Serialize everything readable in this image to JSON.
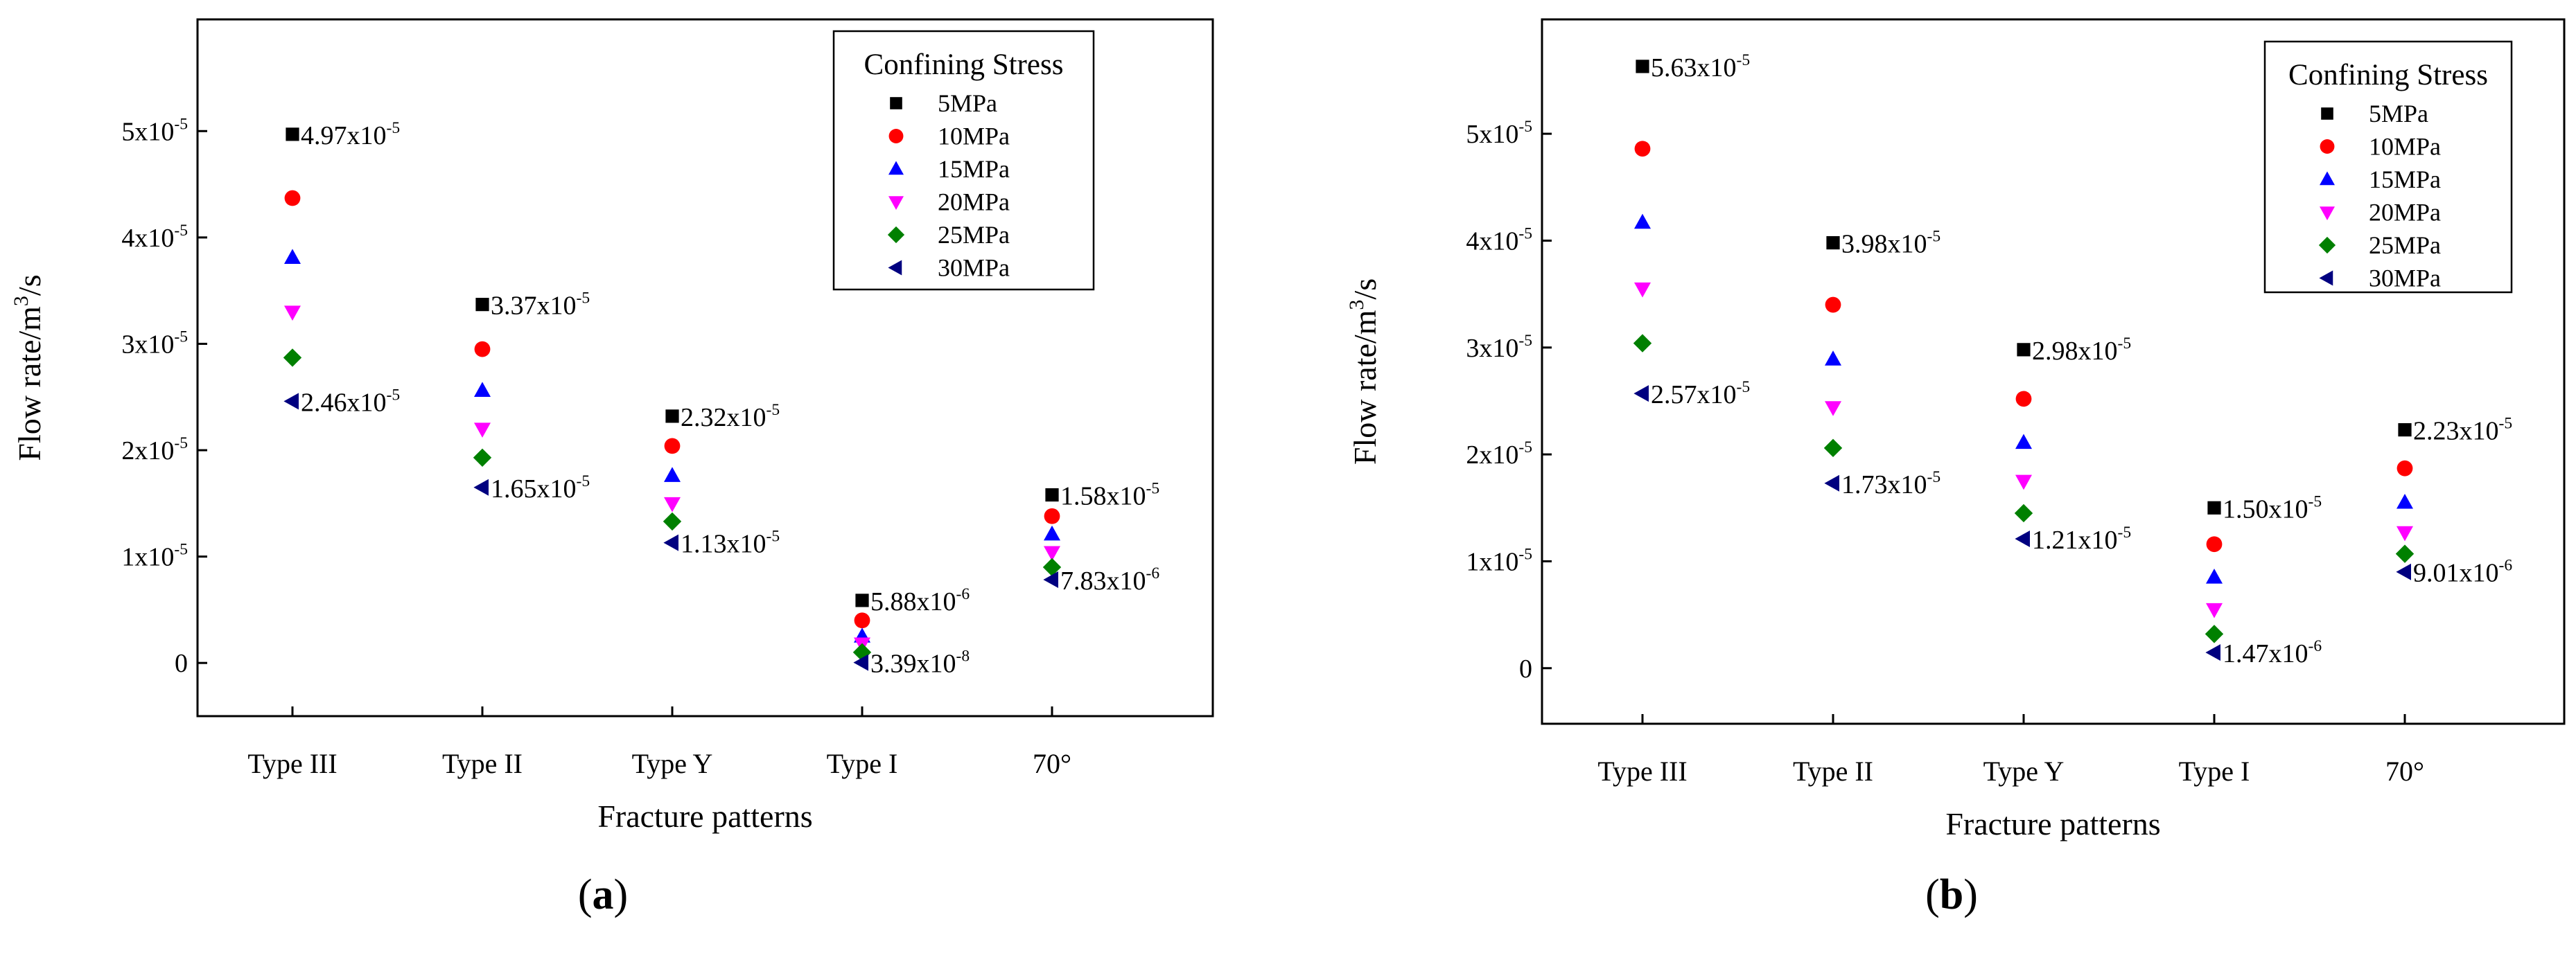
{
  "chart_data": [
    {
      "type": "scatter",
      "panel_label": "a",
      "xlabel": "Fracture patterns",
      "ylabel": "Flow rate/m",
      "ylabel_sup": "3",
      "ylabel_suffix": "/s",
      "categories": [
        "Type III",
        "Type II",
        "Type Y",
        "Type I",
        "70°"
      ],
      "ylim": [
        -5e-06,
        6.05e-05
      ],
      "yticks": [
        {
          "value": 0,
          "base": "0",
          "exp": ""
        },
        {
          "value": 1e-05,
          "base": "1x10",
          "exp": "-5"
        },
        {
          "value": 2e-05,
          "base": "2x10",
          "exp": "-5"
        },
        {
          "value": 3e-05,
          "base": "3x10",
          "exp": "-5"
        },
        {
          "value": 4e-05,
          "base": "4x10",
          "exp": "-5"
        },
        {
          "value": 5e-05,
          "base": "5x10",
          "exp": "-5"
        }
      ],
      "legend": {
        "title": "Confining Stress",
        "position": "top-right"
      },
      "series": [
        {
          "name": "5MPa",
          "marker": "square",
          "color": "#000000",
          "values": [
            4.97e-05,
            3.37e-05,
            2.32e-05,
            5.88e-06,
            1.58e-05
          ]
        },
        {
          "name": "10MPa",
          "marker": "circle",
          "color": "#ff0000",
          "values": [
            4.37e-05,
            2.95e-05,
            2.04e-05,
            4e-06,
            1.38e-05
          ]
        },
        {
          "name": "15MPa",
          "marker": "triangle-up",
          "color": "#0000ff",
          "values": [
            3.81e-05,
            2.56e-05,
            1.76e-05,
            2.5e-06,
            1.21e-05
          ]
        },
        {
          "name": "20MPa",
          "marker": "triangle-down",
          "color": "#ff00ff",
          "values": [
            3.3e-05,
            2.2e-05,
            1.5e-05,
            1.8e-06,
            1.04e-05
          ]
        },
        {
          "name": "25MPa",
          "marker": "diamond",
          "color": "#008000",
          "values": [
            2.87e-05,
            1.93e-05,
            1.33e-05,
            1e-06,
            9e-06
          ]
        },
        {
          "name": "30MPa",
          "marker": "triangle-left",
          "color": "#000080",
          "values": [
            2.46e-05,
            1.65e-05,
            1.13e-05,
            3.39e-08,
            7.83e-06
          ]
        }
      ],
      "annotations": [
        {
          "series": "5MPa",
          "category": 0,
          "base": "4.97x10",
          "exp": "-5",
          "color": "#000000"
        },
        {
          "series": "30MPa",
          "category": 0,
          "base": "2.46x10",
          "exp": "-5",
          "color": "#000000"
        },
        {
          "series": "5MPa",
          "category": 1,
          "base": "3.37x10",
          "exp": "-5",
          "color": "#000000"
        },
        {
          "series": "30MPa",
          "category": 1,
          "base": "1.65x10",
          "exp": "-5",
          "color": "#000000"
        },
        {
          "series": "5MPa",
          "category": 2,
          "base": "2.32x10",
          "exp": "-5",
          "color": "#000000"
        },
        {
          "series": "30MPa",
          "category": 2,
          "base": "1.13x10",
          "exp": "-5",
          "color": "#000000"
        },
        {
          "series": "5MPa",
          "category": 3,
          "base": "5.88x10",
          "exp": "-6",
          "color": "#000000"
        },
        {
          "series": "30MPa",
          "category": 3,
          "base": "3.39x10",
          "exp": "-8",
          "color": "#000000"
        },
        {
          "series": "5MPa",
          "category": 4,
          "base": "1.58x10",
          "exp": "-5",
          "color": "#000000"
        },
        {
          "series": "30MPa",
          "category": 4,
          "base": "7.83x10",
          "exp": "-6",
          "color": "#000000"
        }
      ]
    },
    {
      "type": "scatter",
      "panel_label": "b",
      "xlabel": "Fracture patterns",
      "ylabel": "Flow rate/m",
      "ylabel_sup": "3",
      "ylabel_suffix": "/s",
      "categories": [
        "Type III",
        "Type II",
        "Type Y",
        "Type I",
        "70°"
      ],
      "ylim": [
        -5.2e-06,
        6.07e-05
      ],
      "yticks": [
        {
          "value": 0,
          "base": "0",
          "exp": ""
        },
        {
          "value": 1e-05,
          "base": "1x10",
          "exp": "-5"
        },
        {
          "value": 2e-05,
          "base": "2x10",
          "exp": "-5"
        },
        {
          "value": 3e-05,
          "base": "3x10",
          "exp": "-5"
        },
        {
          "value": 4e-05,
          "base": "4x10",
          "exp": "-5"
        },
        {
          "value": 5e-05,
          "base": "5x10",
          "exp": "-5"
        }
      ],
      "legend": {
        "title": "Confining Stress",
        "position": "top-right"
      },
      "series": [
        {
          "name": "5MPa",
          "marker": "square",
          "color": "#000000",
          "values": [
            5.63e-05,
            3.98e-05,
            2.98e-05,
            1.5e-05,
            2.23e-05
          ]
        },
        {
          "name": "10MPa",
          "marker": "circle",
          "color": "#ff0000",
          "values": [
            4.86e-05,
            3.4e-05,
            2.52e-05,
            1.16e-05,
            1.87e-05
          ]
        },
        {
          "name": "15MPa",
          "marker": "triangle-up",
          "color": "#0000ff",
          "values": [
            4.17e-05,
            2.89e-05,
            2.11e-05,
            8.5e-06,
            1.55e-05
          ]
        },
        {
          "name": "20MPa",
          "marker": "triangle-down",
          "color": "#ff00ff",
          "values": [
            3.55e-05,
            2.44e-05,
            1.75e-05,
            5.5e-06,
            1.27e-05
          ]
        },
        {
          "name": "25MPa",
          "marker": "diamond",
          "color": "#008000",
          "values": [
            3.04e-05,
            2.06e-05,
            1.45e-05,
            3.2e-06,
            1.07e-05
          ]
        },
        {
          "name": "30MPa",
          "marker": "triangle-left",
          "color": "#000080",
          "values": [
            2.57e-05,
            1.73e-05,
            1.21e-05,
            1.47e-06,
            9.01e-06
          ]
        }
      ],
      "annotations": [
        {
          "series": "5MPa",
          "category": 0,
          "base": "5.63x10",
          "exp": "-5",
          "color": "#000000"
        },
        {
          "series": "30MPa",
          "category": 0,
          "base": "2.57x10",
          "exp": "-5",
          "color": "#000080"
        },
        {
          "series": "5MPa",
          "category": 1,
          "base": "3.98x10",
          "exp": "-5",
          "color": "#000000"
        },
        {
          "series": "30MPa",
          "category": 1,
          "base": "1.73x10",
          "exp": "-5",
          "color": "#000080"
        },
        {
          "series": "5MPa",
          "category": 2,
          "base": "2.98x10",
          "exp": "-5",
          "color": "#000000"
        },
        {
          "series": "30MPa",
          "category": 2,
          "base": "1.21x10",
          "exp": "-5",
          "color": "#000080"
        },
        {
          "series": "5MPa",
          "category": 3,
          "base": "1.50x10",
          "exp": "-5",
          "color": "#000000"
        },
        {
          "series": "30MPa",
          "category": 3,
          "base": "1.47x10",
          "exp": "-6",
          "color": "#000080"
        },
        {
          "series": "5MPa",
          "category": 4,
          "base": "2.23x10",
          "exp": "-5",
          "color": "#000000"
        },
        {
          "series": "30MPa",
          "category": 4,
          "base": "9.01x10",
          "exp": "-6",
          "color": "#000080"
        }
      ]
    }
  ]
}
